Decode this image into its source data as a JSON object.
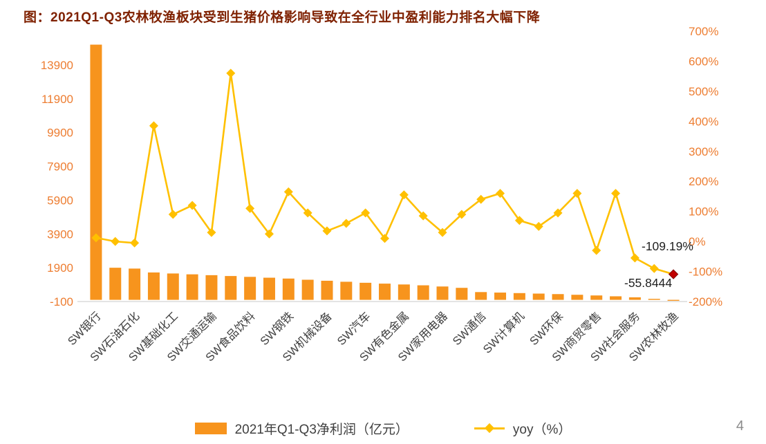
{
  "page": {
    "title": "图：2021Q1-Q3农林牧渔板块受到生猪价格影响导致在全行业中盈利能力排名大幅下降",
    "page_number": "4"
  },
  "legend": {
    "bar_label": "2021年Q1-Q3净利润（亿元）",
    "line_label": "yoy（%）"
  },
  "colors": {
    "bar": "#F7941D",
    "line": "#FFC000",
    "last_marker": "#C00000",
    "axis_labels": "#ED7D31",
    "category_labels": "#404040",
    "title": "#7F2100",
    "annotation": "#1f1f1f"
  },
  "chart_data": {
    "type": "bar",
    "subtype": "bar+line combo, dual axis",
    "title": "图：2021Q1-Q3农林牧渔板块受到生猪价格影响导致在全行业中盈利能力排名大幅下降",
    "categories": [
      "SW银行",
      "",
      "SW石油石化",
      "",
      "SW基础化工",
      "",
      "SW交通运输",
      "",
      "SW食品饮料",
      "",
      "SW钢铁",
      "",
      "SW机械设备",
      "",
      "SW汽车",
      "",
      "SW有色金属",
      "",
      "SW家用电器",
      "",
      "SW通信",
      "",
      "SW计算机",
      "",
      "SW环保",
      "",
      "SW商贸零售",
      "",
      "SW社会服务",
      "",
      "SW农林牧渔"
    ],
    "series": [
      {
        "name": "2021年Q1-Q3净利润（亿元）",
        "type": "bar",
        "axis": "left",
        "values": [
          15100,
          1900,
          1850,
          1620,
          1560,
          1510,
          1460,
          1410,
          1360,
          1310,
          1260,
          1190,
          1130,
          1070,
          1010,
          960,
          910,
          860,
          790,
          710,
          460,
          430,
          400,
          370,
          340,
          300,
          260,
          210,
          150,
          60,
          -55.8444
        ]
      },
      {
        "name": "yoy（%）",
        "type": "line",
        "axis": "right",
        "values": [
          12,
          0,
          -5,
          385,
          90,
          120,
          30,
          560,
          110,
          25,
          165,
          95,
          35,
          60,
          95,
          10,
          155,
          85,
          30,
          90,
          140,
          160,
          70,
          50,
          95,
          160,
          -30,
          160,
          -55,
          -90,
          -109.19
        ]
      }
    ],
    "left_axis": {
      "ticks": [
        -100,
        1900,
        3900,
        5900,
        7900,
        9900,
        11900,
        13900
      ],
      "min": -100,
      "max": 15900
    },
    "right_axis": {
      "ticks_percent": [
        700,
        600,
        500,
        400,
        300,
        200,
        100,
        0,
        -100,
        -200
      ],
      "min": -200,
      "max": 700
    },
    "annotations": [
      {
        "text": "-109.19%"
      },
      {
        "text": "-55.8444"
      }
    ],
    "grid": false,
    "legend_position": "bottom"
  }
}
